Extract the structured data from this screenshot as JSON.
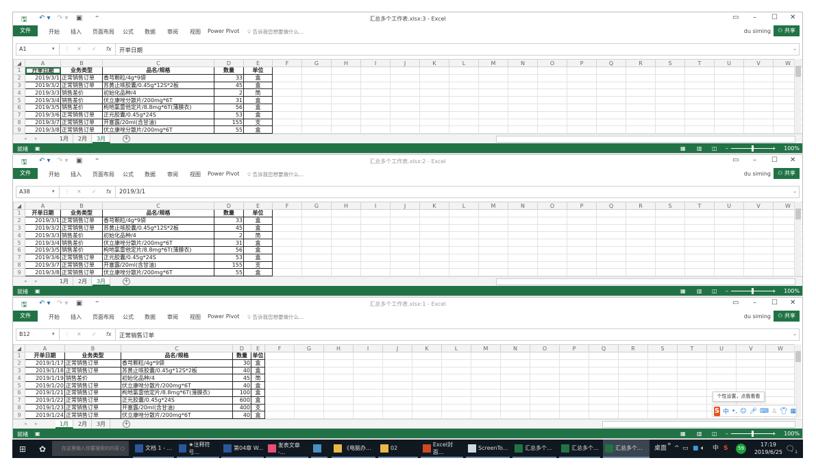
{
  "ribbon": {
    "file": "文件",
    "tabs": [
      "开始",
      "插入",
      "页面布局",
      "公式",
      "数据",
      "审阅",
      "视图",
      "Power Pivot"
    ],
    "tell_me": "告诉我您想要做什么...",
    "user": "du siming",
    "share": "共享"
  },
  "columns": [
    "A",
    "B",
    "C",
    "D",
    "E",
    "F",
    "G",
    "H",
    "I",
    "J",
    "K",
    "L",
    "M",
    "N",
    "O",
    "P",
    "Q",
    "R",
    "S",
    "T",
    "U",
    "V",
    "W"
  ],
  "sheets": [
    "1月",
    "2月",
    "3月"
  ],
  "status": {
    "ready": "就绪",
    "zoom": "100%"
  },
  "tables": {
    "march": {
      "header": [
        "开单日期",
        "业务类型",
        "品名/规格",
        "数量",
        "单位"
      ],
      "rows": [
        [
          "2019/3/1",
          "正常销售订单",
          "香芎颗粒/4g*9袋",
          "33",
          "盒"
        ],
        [
          "2019/3/2",
          "正常销售订单",
          "苏黄止咳胶囊/0.45g*12S*2板",
          "45",
          "盒"
        ],
        [
          "2019/3/3",
          "销售差价",
          "初始化品种/4",
          "2",
          "筒"
        ],
        [
          "2019/3/4",
          "销售差价",
          "伏立康唑分散片/200mg*6T",
          "31",
          "盒"
        ],
        [
          "2019/3/5",
          "销售差价",
          "枸地氯雷他定片/8.8mg*6T(薄膜衣)",
          "56",
          "盒"
        ],
        [
          "2019/3/6",
          "正常销售订单",
          "正元胶囊/0.45g*24S",
          "53",
          "盒"
        ],
        [
          "2019/3/7",
          "正常销售订单",
          "开塞露/20ml(含甘油)",
          "155",
          "支"
        ],
        [
          "2019/3/8",
          "正常销售订单",
          "伏立康唑分散片/200mg*6T",
          "55",
          "盒"
        ]
      ]
    },
    "january": {
      "header": [
        "开单日期",
        "业务类型",
        "品名/规格",
        "数量",
        "单位"
      ],
      "rows": [
        [
          "2019/1/17",
          "正常销售订单",
          "香芎颗粒/4g*9袋",
          "30",
          "盒"
        ],
        [
          "2019/1/18",
          "正常销售订单",
          "苏黄止咳胶囊/0.45g*12S*2板",
          "40",
          "盒"
        ],
        [
          "2019/1/19",
          "销售差价",
          "初始化品种/4",
          "45",
          "筒"
        ],
        [
          "2019/1/20",
          "正常销售订单",
          "伏立康唑分散片/200mg*6T",
          "40",
          "盒"
        ],
        [
          "2019/1/21",
          "正常销售订单",
          "枸地氯雷他定片/8.8mg*6T(薄膜衣)",
          "100",
          "盒"
        ],
        [
          "2019/1/22",
          "正常销售订单",
          "正元胶囊/0.45g*24S",
          "600",
          "盒"
        ],
        [
          "2019/1/23",
          "正常销售订单",
          "开塞露/20ml(含甘油)",
          "400",
          "支"
        ],
        [
          "2019/1/24",
          "正常销售订单",
          "伏立康唑分散片/200mg*6T",
          "40",
          "盒"
        ]
      ]
    }
  },
  "windows": [
    {
      "title": "汇总多个工作表.xlsx:3 - Excel",
      "name_box": "A1",
      "formula": "开单日期",
      "table": "march",
      "active_sheet": "3月",
      "focused": true
    },
    {
      "title": "汇总多个工作表.xlsx:2 - Excel",
      "name_box": "A38",
      "formula": "2019/3/1",
      "table": "march",
      "active_sheet": "3月",
      "focused": false
    },
    {
      "title": "汇总多个工作表.xlsx:1 - Excel",
      "name_box": "B12",
      "formula": "正常销售订单",
      "table": "january",
      "active_sheet": "1月",
      "focused": false
    }
  ],
  "ime": {
    "tooltip": "个性设置，点我看看",
    "lang": "中"
  },
  "taskbar": {
    "search_placeholder": "在这里输入你要搜索的内容",
    "items": [
      {
        "label": "文档 1 - ...",
        "icon": "word-icon",
        "color": "#2b579a"
      },
      {
        "label": "★注释符号...",
        "icon": "word-icon",
        "color": "#2b579a"
      },
      {
        "label": "第04章 W...",
        "icon": "word-icon",
        "color": "#2b579a"
      },
      {
        "label": "发表文章 -...",
        "icon": "browser-icon",
        "color": "#e94e77"
      },
      {
        "label": "",
        "icon": "image-viewer-icon",
        "color": "#4a90c2"
      },
      {
        "label": "《电脑办...",
        "icon": "folder-icon",
        "color": "#e8b84a"
      },
      {
        "label": "02",
        "icon": "folder-icon",
        "color": "#e8b84a"
      },
      {
        "label": "Excel封面...",
        "icon": "powerpoint-icon",
        "color": "#d24726"
      },
      {
        "label": "ScreenTo...",
        "icon": "screen-icon",
        "color": "#cfd8e0"
      },
      {
        "label": "汇总多个...",
        "icon": "excel-icon",
        "color": "#217346"
      },
      {
        "label": "汇总多个...",
        "icon": "excel-icon",
        "color": "#217346"
      },
      {
        "label": "汇总多个...",
        "icon": "excel-icon",
        "color": "#217346",
        "active": true
      }
    ],
    "desktop": "桌面",
    "overflow": "»",
    "input_lang": "中",
    "badge": "59",
    "time": "17:19",
    "date": "2019/6/25",
    "notifications": "1"
  }
}
